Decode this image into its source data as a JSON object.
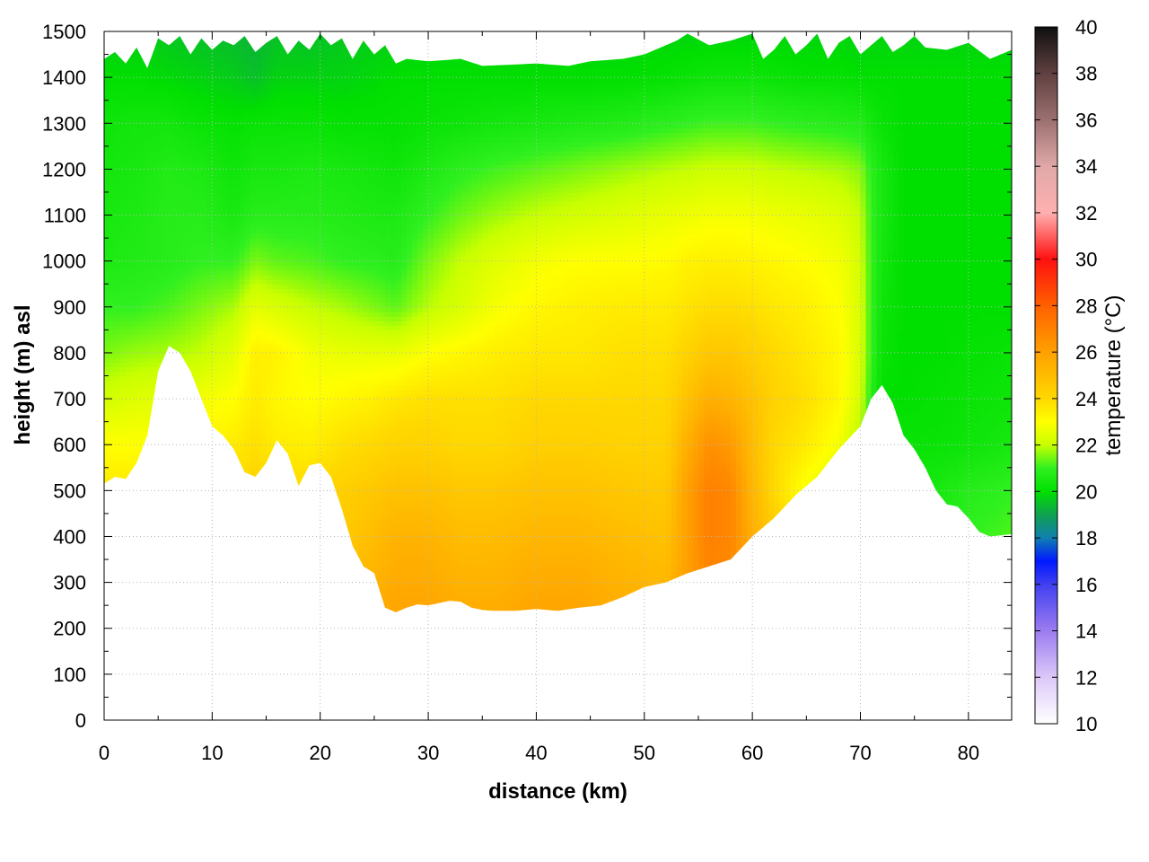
{
  "chart_data": {
    "type": "heatmap",
    "title": "",
    "xlabel": "distance (km)",
    "ylabel": "height (m) asl",
    "colorbar_label": "temperature (°C)",
    "xlim": [
      0,
      84
    ],
    "ylim": [
      0,
      1500
    ],
    "clim": [
      10,
      40
    ],
    "x_ticks": [
      0,
      10,
      20,
      30,
      40,
      50,
      60,
      70,
      80
    ],
    "y_ticks": [
      0,
      100,
      200,
      300,
      400,
      500,
      600,
      700,
      800,
      900,
      1000,
      1100,
      1200,
      1300,
      1400,
      1500
    ],
    "colorbar_ticks": [
      10,
      12,
      14,
      16,
      18,
      20,
      22,
      24,
      26,
      28,
      30,
      32,
      34,
      36,
      38,
      40
    ],
    "grid": true,
    "colormap": [
      [
        10,
        "#ffffff"
      ],
      [
        12,
        "#dcc8f8"
      ],
      [
        14,
        "#9c7cf0"
      ],
      [
        16,
        "#4040f0"
      ],
      [
        17,
        "#0018ff"
      ],
      [
        18,
        "#1080b0"
      ],
      [
        19,
        "#10a050"
      ],
      [
        20,
        "#00e000"
      ],
      [
        21,
        "#30f020"
      ],
      [
        22,
        "#c8ff00"
      ],
      [
        23,
        "#ffff00"
      ],
      [
        24,
        "#ffd800"
      ],
      [
        26,
        "#ffa000"
      ],
      [
        28,
        "#ff6000"
      ],
      [
        30,
        "#ff1010"
      ],
      [
        31,
        "#ff6060"
      ],
      [
        32,
        "#ffb0b0"
      ],
      [
        34,
        "#e0a8a8"
      ],
      [
        36,
        "#9c7070"
      ],
      [
        38,
        "#604040"
      ],
      [
        40,
        "#101010"
      ]
    ],
    "terrain": {
      "x": [
        0,
        1,
        2,
        3,
        4,
        5,
        6,
        7,
        8,
        9,
        10,
        11,
        12,
        13,
        14,
        15,
        16,
        17,
        18,
        19,
        20,
        21,
        22,
        23,
        24,
        25,
        26,
        27,
        28,
        29,
        30,
        31,
        32,
        33,
        34,
        35,
        36,
        38,
        40,
        42,
        44,
        46,
        48,
        50,
        52,
        54,
        56,
        58,
        60,
        62,
        64,
        66,
        68,
        70,
        71,
        72,
        73,
        74,
        75,
        76,
        77,
        78,
        79,
        80,
        81,
        82,
        84
      ],
      "height": [
        515,
        530,
        525,
        560,
        620,
        760,
        815,
        800,
        760,
        700,
        640,
        620,
        590,
        540,
        530,
        560,
        610,
        580,
        510,
        555,
        560,
        530,
        460,
        380,
        335,
        320,
        245,
        235,
        245,
        252,
        250,
        255,
        260,
        258,
        245,
        240,
        238,
        238,
        242,
        238,
        245,
        250,
        268,
        290,
        300,
        320,
        335,
        350,
        400,
        440,
        490,
        530,
        590,
        640,
        700,
        730,
        690,
        620,
        590,
        550,
        500,
        470,
        465,
        440,
        410,
        400,
        405
      ]
    },
    "top_boundary": {
      "x": [
        0,
        1,
        2,
        3,
        4,
        5,
        6,
        7,
        8,
        9,
        10,
        11,
        12,
        13,
        14,
        15,
        16,
        17,
        18,
        19,
        20,
        21,
        22,
        23,
        24,
        25,
        26,
        27,
        28,
        30,
        33,
        35,
        38,
        40,
        43,
        45,
        48,
        50,
        52,
        53,
        54,
        56,
        58,
        60,
        61,
        62,
        63,
        64,
        65,
        66,
        67,
        68,
        69,
        70,
        71,
        72,
        73,
        74,
        75,
        76,
        78,
        80,
        82,
        84
      ],
      "height": [
        1440,
        1455,
        1430,
        1465,
        1420,
        1485,
        1470,
        1490,
        1450,
        1485,
        1460,
        1480,
        1470,
        1490,
        1455,
        1475,
        1490,
        1450,
        1480,
        1460,
        1495,
        1470,
        1485,
        1440,
        1480,
        1450,
        1470,
        1430,
        1440,
        1435,
        1440,
        1425,
        1428,
        1430,
        1425,
        1435,
        1440,
        1450,
        1470,
        1480,
        1495,
        1470,
        1480,
        1495,
        1440,
        1460,
        1490,
        1450,
        1470,
        1495,
        1440,
        1475,
        1490,
        1450,
        1470,
        1490,
        1455,
        1470,
        1490,
        1465,
        1460,
        1475,
        1440,
        1460
      ]
    },
    "temperature_field": {
      "x": [
        0,
        3,
        6,
        9,
        12,
        14,
        16,
        19,
        22,
        25,
        27,
        30,
        33,
        36,
        40,
        44,
        48,
        52,
        54,
        56,
        58,
        60,
        62,
        65,
        68,
        70,
        71,
        72,
        74,
        77,
        80,
        84
      ],
      "height": [
        250,
        400,
        500,
        600,
        700,
        800,
        900,
        1000,
        1100,
        1200,
        1300,
        1400,
        1500
      ],
      "temperature": [
        [
          24.5,
          24.5,
          24.5,
          24.5,
          24.5,
          24.8,
          24.8,
          24.8,
          25.0,
          25.5,
          25.8,
          25.8,
          25.5,
          25.5,
          25.8,
          25.8,
          25.5,
          25.3,
          26.0,
          26.8,
          26.5,
          25.8,
          25.2,
          24.5,
          23.5,
          22.5,
          21.5,
          21.0,
          20.6,
          20.6,
          21.0,
          21.2
        ],
        [
          24.0,
          24.0,
          24.0,
          24.0,
          24.0,
          24.2,
          24.2,
          24.2,
          24.5,
          25.0,
          25.3,
          25.3,
          25.0,
          25.0,
          25.2,
          25.2,
          25.0,
          24.8,
          26.0,
          27.0,
          26.8,
          25.5,
          24.5,
          23.5,
          22.5,
          21.8,
          21.0,
          20.8,
          20.5,
          20.6,
          21.0,
          21.2
        ],
        [
          23.6,
          23.6,
          23.6,
          23.8,
          24.0,
          24.2,
          24.0,
          24.0,
          24.3,
          24.6,
          24.8,
          24.8,
          24.6,
          24.6,
          24.8,
          24.8,
          24.6,
          24.5,
          26.0,
          27.0,
          26.8,
          25.2,
          24.0,
          22.8,
          22.2,
          21.5,
          20.8,
          20.6,
          20.4,
          20.5,
          20.8,
          21.0
        ],
        [
          23.0,
          23.0,
          23.0,
          23.2,
          23.5,
          23.8,
          23.5,
          23.4,
          23.8,
          24.0,
          24.2,
          24.2,
          24.0,
          24.0,
          24.3,
          24.3,
          24.2,
          24.2,
          25.5,
          26.5,
          26.2,
          25.0,
          24.0,
          23.5,
          22.8,
          21.8,
          20.8,
          20.5,
          20.2,
          20.2,
          20.3,
          20.5
        ],
        [
          22.2,
          22.4,
          22.5,
          22.8,
          23.0,
          23.5,
          23.2,
          23.0,
          23.2,
          23.4,
          23.6,
          23.8,
          23.8,
          23.8,
          24.0,
          24.0,
          24.0,
          24.0,
          24.8,
          25.5,
          25.3,
          24.8,
          24.2,
          23.8,
          23.2,
          22.2,
          20.8,
          20.0,
          20.0,
          20.1,
          20.2,
          20.3
        ],
        [
          21.5,
          21.7,
          21.8,
          22.0,
          22.5,
          23.4,
          23.3,
          22.8,
          22.6,
          22.6,
          22.6,
          23.0,
          23.2,
          23.4,
          23.6,
          23.6,
          23.8,
          23.8,
          24.2,
          24.6,
          24.6,
          24.3,
          24.0,
          23.6,
          23.2,
          22.3,
          21.0,
          20.2,
          20.0,
          20.0,
          20.1,
          20.2
        ],
        [
          21.0,
          21.0,
          21.2,
          21.5,
          21.8,
          22.5,
          22.3,
          22.0,
          21.8,
          21.5,
          21.3,
          21.9,
          22.3,
          22.8,
          23.2,
          23.4,
          23.5,
          23.5,
          23.7,
          23.9,
          23.9,
          23.8,
          23.6,
          23.4,
          23.0,
          22.3,
          21.0,
          20.3,
          20.0,
          20.0,
          20.0,
          20.0
        ],
        [
          20.6,
          20.7,
          20.8,
          21.0,
          21.0,
          21.5,
          21.3,
          21.2,
          21.0,
          20.9,
          20.8,
          21.5,
          22.0,
          22.4,
          22.8,
          23.0,
          23.0,
          23.1,
          23.3,
          23.4,
          23.4,
          23.3,
          23.2,
          23.0,
          22.8,
          22.2,
          21.0,
          20.4,
          20.0,
          20.0,
          20.0,
          20.0
        ],
        [
          20.5,
          20.6,
          20.8,
          20.8,
          20.5,
          20.8,
          20.8,
          20.8,
          20.7,
          20.6,
          20.6,
          21.0,
          21.4,
          21.7,
          22.0,
          22.2,
          22.4,
          22.6,
          22.7,
          22.8,
          22.8,
          22.8,
          22.7,
          22.6,
          22.4,
          22.0,
          21.0,
          20.5,
          20.0,
          20.0,
          20.0,
          20.0
        ],
        [
          20.4,
          20.5,
          20.7,
          20.6,
          20.3,
          20.5,
          20.5,
          20.6,
          20.5,
          20.4,
          20.3,
          20.6,
          20.9,
          21.1,
          21.3,
          21.5,
          21.7,
          21.9,
          22.0,
          22.1,
          22.1,
          22.1,
          22.0,
          21.9,
          21.8,
          21.6,
          20.9,
          20.5,
          20.0,
          20.0,
          20.0,
          20.0
        ],
        [
          20.3,
          20.4,
          20.4,
          20.2,
          20.1,
          20.2,
          20.2,
          20.2,
          20.1,
          20.1,
          20.1,
          20.2,
          20.3,
          20.4,
          20.5,
          20.6,
          20.7,
          20.9,
          21.0,
          21.1,
          21.1,
          21.1,
          21.0,
          20.9,
          20.8,
          20.7,
          20.4,
          20.2,
          20.0,
          20.0,
          20.0,
          20.0
        ],
        [
          20.0,
          20.0,
          19.9,
          19.8,
          19.7,
          19.5,
          19.8,
          19.8,
          19.8,
          19.9,
          20.0,
          20.0,
          20.0,
          20.0,
          20.0,
          20.0,
          20.0,
          20.1,
          20.2,
          20.3,
          20.3,
          20.3,
          20.2,
          20.1,
          20.1,
          20.0,
          20.0,
          20.0,
          20.0,
          20.0,
          20.0,
          20.0
        ],
        [
          19.7,
          19.7,
          19.6,
          19.5,
          19.4,
          19.3,
          19.5,
          19.5,
          19.6,
          19.7,
          19.7,
          19.8,
          19.8,
          19.8,
          19.8,
          19.8,
          19.8,
          19.8,
          19.8,
          19.8,
          19.8,
          19.8,
          19.8,
          19.8,
          19.8,
          19.8,
          19.8,
          19.8,
          19.8,
          19.8,
          19.8,
          19.8
        ]
      ]
    }
  }
}
